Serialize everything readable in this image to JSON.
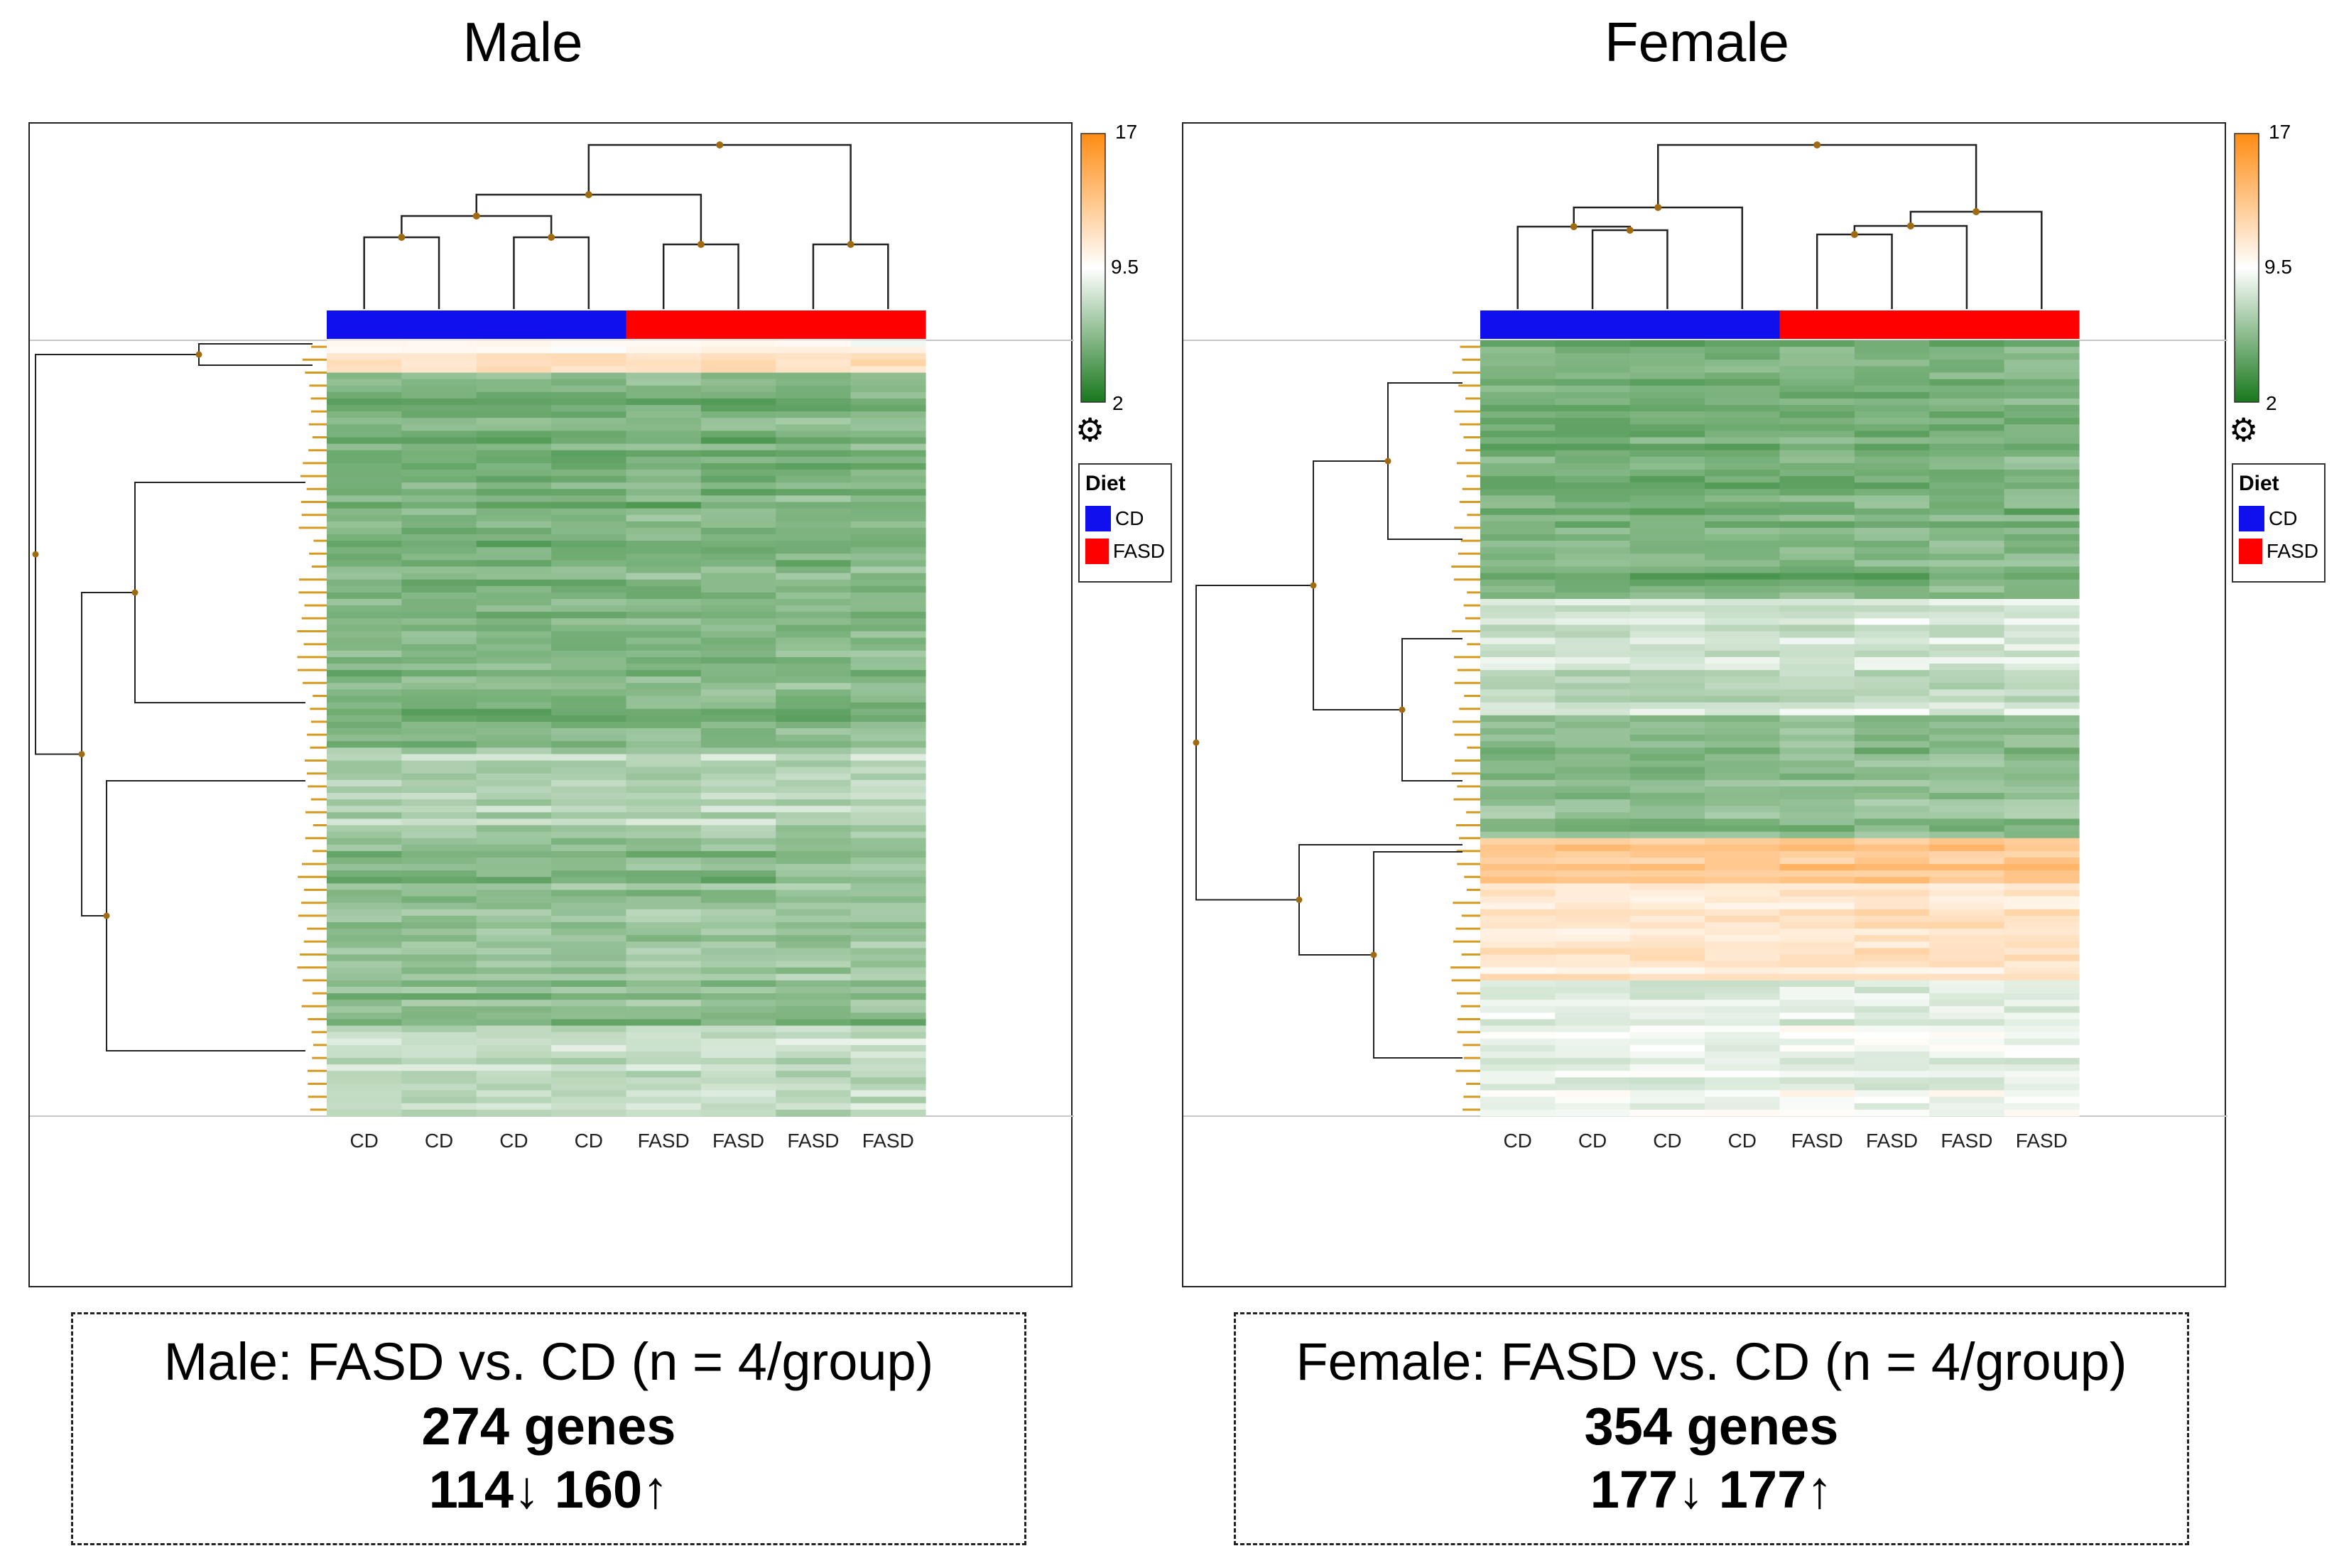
{
  "chart_data": [
    {
      "type": "heatmap",
      "title": "Male",
      "columns": [
        "CD",
        "CD",
        "CD",
        "CD",
        "FASD",
        "FASD",
        "FASD",
        "FASD"
      ],
      "column_groups": [
        "CD",
        "CD",
        "CD",
        "CD",
        "FASD",
        "FASD",
        "FASD",
        "FASD"
      ],
      "color_scale": {
        "min": 2,
        "mid": 9.5,
        "max": 17,
        "labels": [
          "17",
          "9.5",
          "2"
        ]
      },
      "legend": {
        "title": "Diet",
        "items": [
          {
            "label": "CD",
            "color": "#1010ee"
          },
          {
            "label": "FASD",
            "color": "#ff0000"
          }
        ]
      },
      "summary": {
        "line1": "Male: FASD vs. CD (n = 4/group)",
        "line2": "274 genes",
        "line3": "114↓ 160↑"
      },
      "genes": 274,
      "down": 114,
      "up": 160
    },
    {
      "type": "heatmap",
      "title": "Female",
      "columns": [
        "CD",
        "CD",
        "CD",
        "CD",
        "FASD",
        "FASD",
        "FASD",
        "FASD"
      ],
      "column_groups": [
        "CD",
        "CD",
        "CD",
        "CD",
        "FASD",
        "FASD",
        "FASD",
        "FASD"
      ],
      "color_scale": {
        "min": 2,
        "mid": 9.5,
        "max": 17,
        "labels": [
          "17",
          "9.5",
          "2"
        ]
      },
      "legend": {
        "title": "Diet",
        "items": [
          {
            "label": "CD",
            "color": "#1010ee"
          },
          {
            "label": "FASD",
            "color": "#ff0000"
          }
        ]
      },
      "summary": {
        "line1": "Female: FASD vs. CD (n = 4/group)",
        "line2": "354 genes",
        "line3": "177↓ 177↑"
      },
      "genes": 354,
      "down": 177,
      "up": 177
    }
  ]
}
